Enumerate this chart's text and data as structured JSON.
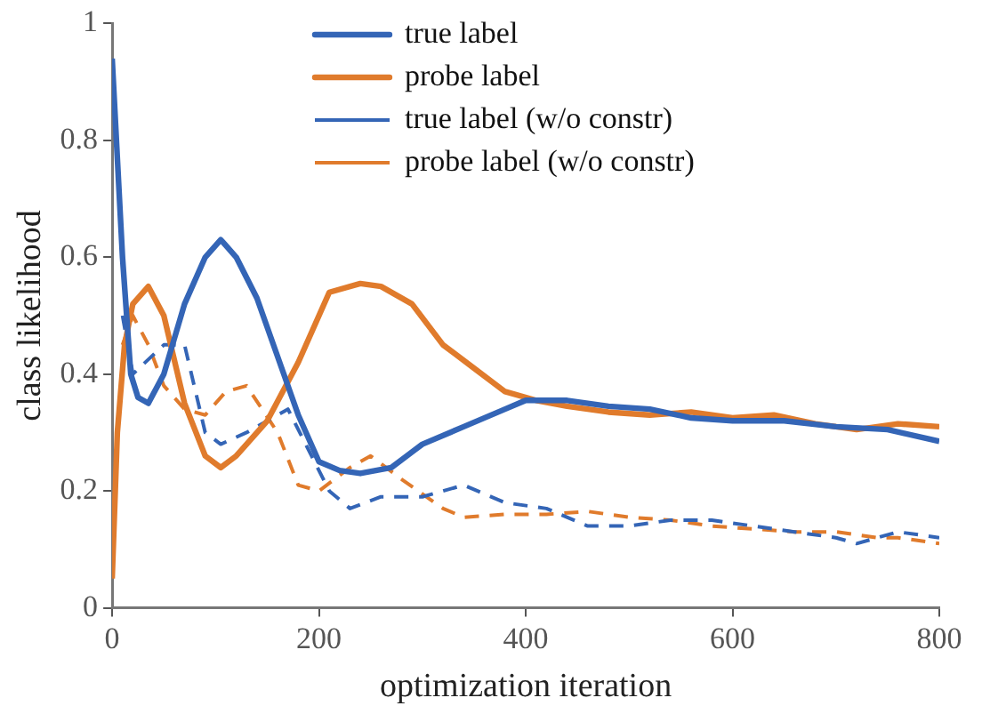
{
  "chart_data": {
    "type": "line",
    "xlabel": "optimization iteration",
    "ylabel": "class likelihood",
    "xlim": [
      0,
      800
    ],
    "ylim": [
      0,
      1
    ],
    "xticks": [
      0,
      200,
      400,
      600,
      800
    ],
    "yticks": [
      0,
      0.2,
      0.4,
      0.6,
      0.8,
      1
    ],
    "grid": false,
    "legend": "top",
    "marker": "none",
    "series": [
      {
        "name": "true label",
        "color": "#3465b6",
        "line_style": "solid",
        "x": [
          0,
          10,
          18,
          25,
          35,
          50,
          70,
          90,
          105,
          120,
          140,
          160,
          180,
          200,
          220,
          240,
          270,
          300,
          340,
          380,
          400,
          440,
          480,
          520,
          560,
          600,
          650,
          700,
          750,
          800
        ],
        "values": [
          0.94,
          0.6,
          0.4,
          0.36,
          0.35,
          0.4,
          0.52,
          0.6,
          0.63,
          0.6,
          0.53,
          0.43,
          0.33,
          0.25,
          0.235,
          0.23,
          0.24,
          0.28,
          0.31,
          0.34,
          0.355,
          0.355,
          0.345,
          0.34,
          0.325,
          0.32,
          0.32,
          0.31,
          0.305,
          0.285
        ]
      },
      {
        "name": "probe label",
        "color": "#e07b2c",
        "line_style": "solid",
        "x": [
          0,
          5,
          12,
          20,
          35,
          50,
          70,
          90,
          105,
          120,
          150,
          180,
          210,
          240,
          260,
          290,
          320,
          350,
          380,
          410,
          440,
          480,
          520,
          560,
          600,
          640,
          680,
          720,
          760,
          800
        ],
        "values": [
          0.05,
          0.3,
          0.45,
          0.52,
          0.55,
          0.5,
          0.35,
          0.26,
          0.24,
          0.26,
          0.32,
          0.42,
          0.54,
          0.555,
          0.55,
          0.52,
          0.45,
          0.41,
          0.37,
          0.355,
          0.345,
          0.335,
          0.33,
          0.335,
          0.325,
          0.33,
          0.315,
          0.305,
          0.315,
          0.31
        ]
      },
      {
        "name": "true label (w/o constr)",
        "color": "#3465b6",
        "line_style": "dashed",
        "x": [
          10,
          20,
          50,
          70,
          90,
          105,
          130,
          170,
          190,
          210,
          230,
          260,
          300,
          340,
          380,
          420,
          460,
          500,
          540,
          580,
          620,
          660,
          700,
          720,
          760,
          800
        ],
        "values": [
          0.5,
          0.4,
          0.45,
          0.45,
          0.3,
          0.28,
          0.3,
          0.34,
          0.27,
          0.2,
          0.17,
          0.19,
          0.19,
          0.21,
          0.18,
          0.17,
          0.14,
          0.14,
          0.15,
          0.15,
          0.14,
          0.13,
          0.12,
          0.11,
          0.13,
          0.12
        ]
      },
      {
        "name": "probe label (w/o constr)",
        "color": "#e07b2c",
        "line_style": "dashed",
        "x": [
          10,
          20,
          35,
          50,
          70,
          90,
          110,
          130,
          160,
          180,
          200,
          230,
          250,
          280,
          320,
          340,
          380,
          420,
          460,
          500,
          540,
          580,
          620,
          660,
          700,
          740,
          760,
          800
        ],
        "values": [
          0.45,
          0.5,
          0.45,
          0.38,
          0.34,
          0.33,
          0.37,
          0.38,
          0.3,
          0.21,
          0.2,
          0.24,
          0.26,
          0.22,
          0.17,
          0.155,
          0.16,
          0.16,
          0.165,
          0.155,
          0.15,
          0.14,
          0.135,
          0.13,
          0.13,
          0.12,
          0.12,
          0.11
        ]
      }
    ]
  }
}
